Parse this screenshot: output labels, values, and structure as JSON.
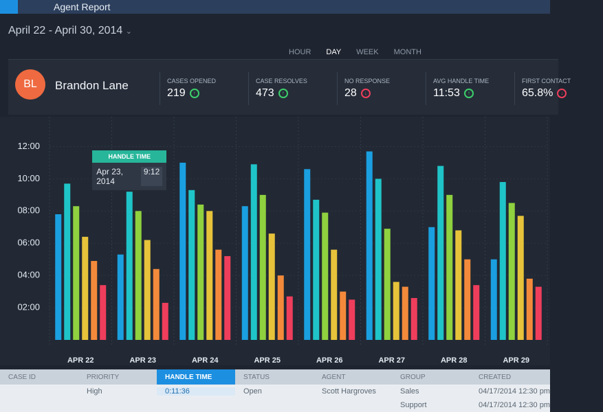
{
  "header": {
    "title": "Agent Report",
    "date_range": "April 22 - April 30, 2014"
  },
  "tabs": {
    "items": [
      "HOUR",
      "DAY",
      "WEEK",
      "MONTH"
    ],
    "active": "DAY"
  },
  "agent": {
    "initials": "BL",
    "name": "Brandon Lane",
    "stats": [
      {
        "label": "CASES OPENED",
        "value": "219",
        "trend": "up"
      },
      {
        "label": "CASE RESOLVES",
        "value": "473",
        "trend": "up"
      },
      {
        "label": "NO RESPONSE",
        "value": "28",
        "trend": "down"
      },
      {
        "label": "AVG HANDLE TIME",
        "value": "11:53",
        "trend": "up"
      },
      {
        "label": "FIRST CONTACT",
        "value": "65.8%",
        "trend": "down"
      }
    ]
  },
  "chart_data": {
    "type": "bar",
    "categories": [
      "APR 22",
      "APR 23",
      "APR 24",
      "APR 25",
      "APR 26",
      "APR 27",
      "APR 28",
      "APR 29"
    ],
    "series": [
      {
        "color": "#1a9fe0",
        "values": [
          7.8,
          5.3,
          11.0,
          8.3,
          10.6,
          11.7,
          7.0,
          5.0
        ]
      },
      {
        "color": "#1fc4c8",
        "values": [
          9.7,
          9.2,
          9.3,
          10.9,
          8.7,
          10.0,
          10.8,
          9.8
        ]
      },
      {
        "color": "#8fd13f",
        "values": [
          8.3,
          8.0,
          8.4,
          9.0,
          7.9,
          6.9,
          9.0,
          8.5
        ]
      },
      {
        "color": "#e6c33a",
        "values": [
          6.4,
          6.2,
          8.0,
          6.6,
          5.6,
          3.6,
          6.8,
          7.7
        ]
      },
      {
        "color": "#f38a3b",
        "values": [
          4.9,
          4.4,
          5.6,
          4.0,
          3.0,
          3.3,
          5.0,
          3.8
        ]
      },
      {
        "color": "#ef3e5c",
        "values": [
          3.4,
          2.3,
          5.2,
          2.7,
          2.5,
          2.6,
          3.4,
          3.3
        ]
      }
    ],
    "ylim": [
      0,
      13
    ],
    "yticks": [
      {
        "value": 2,
        "label": "02:00"
      },
      {
        "value": 4,
        "label": "04:00"
      },
      {
        "value": 6,
        "label": "06:00"
      },
      {
        "value": 8,
        "label": "08:00"
      },
      {
        "value": 10,
        "label": "10:00"
      },
      {
        "value": 12,
        "label": "12:00"
      }
    ],
    "tooltip": {
      "title": "HANDLE TIME",
      "date": "Apr 23, 2014",
      "value": "9:12"
    }
  },
  "table": {
    "columns": [
      "CASE ID",
      "PRIORITY",
      "HANDLE TIME",
      "STATUS",
      "AGENT",
      "GROUP",
      "CREATED"
    ],
    "highlight": "HANDLE TIME",
    "rows": [
      [
        null,
        "High",
        "0:11:36",
        "Open",
        "Scott Hargroves",
        "Sales",
        "04/17/2014 12:30 pm"
      ],
      [
        null,
        null,
        null,
        null,
        null,
        "Support",
        "04/17/2014 12:30 pm"
      ]
    ]
  }
}
